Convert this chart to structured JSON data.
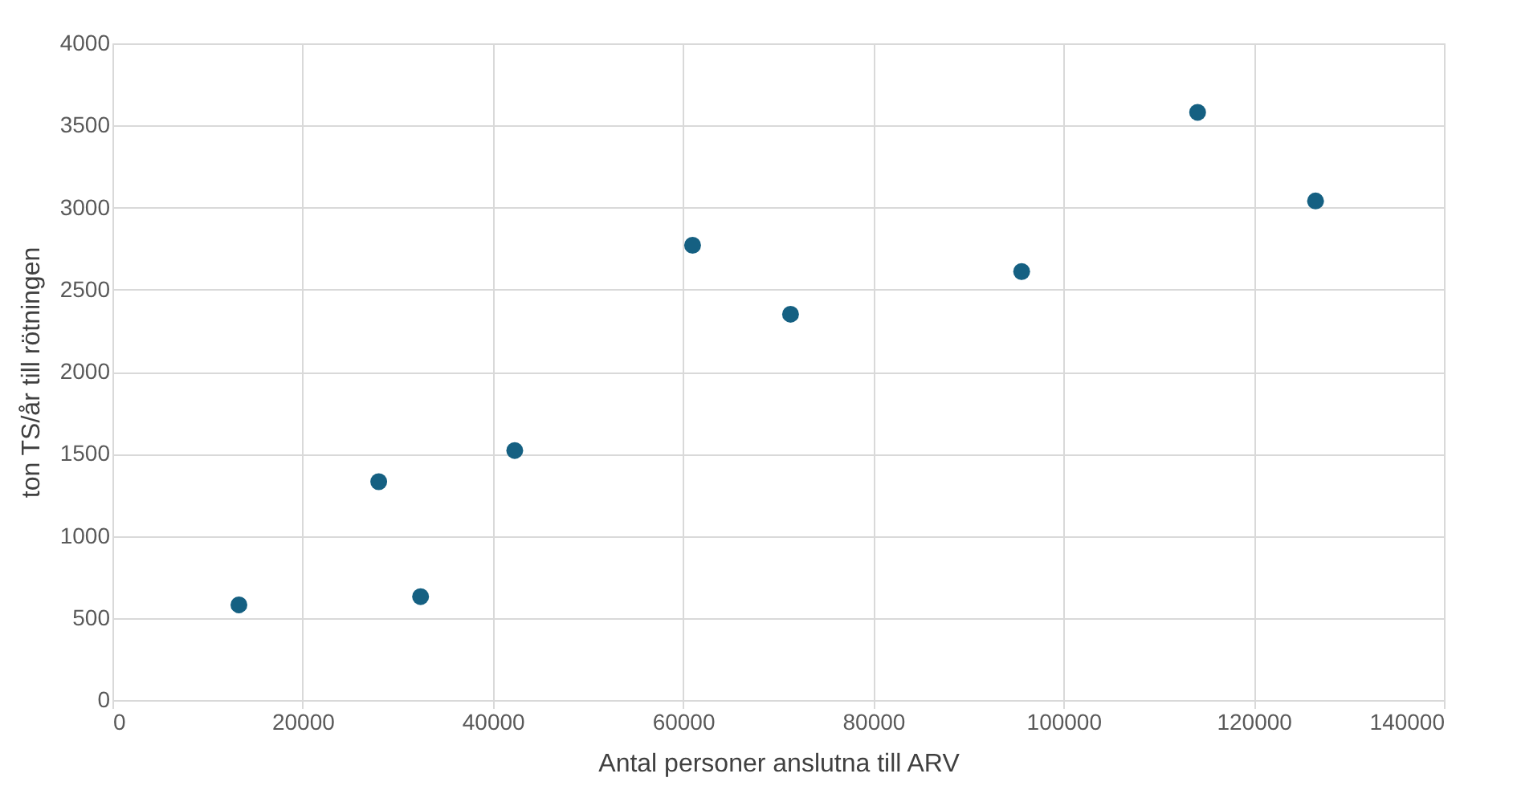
{
  "chart_data": {
    "type": "scatter",
    "xlabel": "Antal personer anslutna till ARV",
    "ylabel": "ton TS/år till rötningen",
    "x": [
      13300,
      28000,
      32400,
      42300,
      61000,
      71300,
      95600,
      114100,
      126500
    ],
    "series": [
      {
        "color": "#156082",
        "values": [
          580,
          1330,
          630,
          1520,
          2770,
          2350,
          2610,
          3580,
          3040
        ]
      }
    ],
    "xlim": [
      0,
      140000
    ],
    "xticks": [
      0,
      20000,
      40000,
      60000,
      80000,
      100000,
      120000,
      140000
    ],
    "ylim": [
      0,
      4000
    ],
    "yticks": [
      0,
      500,
      1000,
      1500,
      2000,
      2500,
      3000,
      3500,
      4000
    ],
    "grid": true,
    "marker": "circle"
  }
}
